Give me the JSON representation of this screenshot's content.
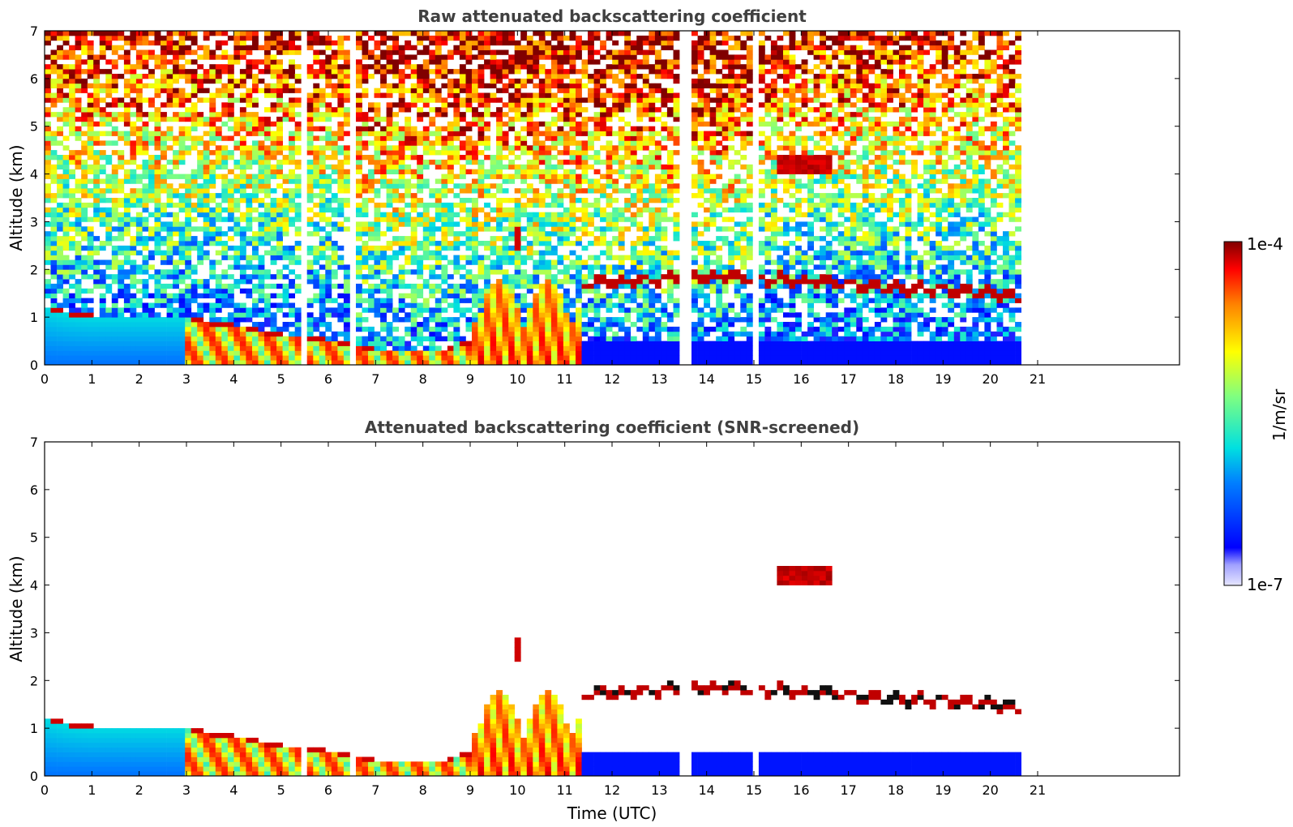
{
  "chart_data": [
    {
      "type": "heatmap",
      "title": "Raw attenuated backscattering coefficient",
      "xlabel": "",
      "ylabel": "Altitude (km)",
      "xlim": [
        0,
        24
      ],
      "ylim": [
        0,
        7
      ],
      "xticks": [
        "0",
        "1",
        "2",
        "3",
        "4",
        "5",
        "6",
        "7",
        "8",
        "9",
        "10",
        "11",
        "12",
        "13",
        "14",
        "15",
        "16",
        "17",
        "18",
        "19",
        "20",
        "21"
      ],
      "yticks": [
        "0",
        "1",
        "2",
        "3",
        "4",
        "5",
        "6",
        "7"
      ],
      "data_end_time": 20.65,
      "noise_field": "dense background noise increasing with altitude (blue near surface, yellow/red aloft)",
      "features": [
        {
          "name": "aerosol layer",
          "t": [
            0.0,
            0.5,
            1.0,
            1.5,
            2.0,
            2.5,
            3.0,
            3.5,
            4.0,
            4.5,
            5.0,
            5.5,
            6.0,
            6.5,
            7.0,
            7.5,
            8.0,
            8.5,
            9.0
          ],
          "top_km": [
            1.25,
            1.1,
            1.05,
            1.05,
            1.05,
            1.05,
            1.05,
            0.9,
            0.85,
            0.75,
            0.65,
            0.6,
            0.55,
            0.45,
            0.35,
            0.35,
            0.35,
            0.35,
            0.5
          ]
        },
        {
          "name": "cloud base",
          "t": [
            11.5,
            12.0,
            12.5,
            13.0,
            13.5,
            14.0,
            14.5,
            15.0,
            15.5,
            16.0,
            16.5,
            17.0,
            17.5,
            18.0,
            18.5,
            19.0,
            19.5,
            20.0,
            20.6
          ],
          "alt_km": [
            1.7,
            1.75,
            1.75,
            1.8,
            1.85,
            1.85,
            1.85,
            1.8,
            1.8,
            1.75,
            1.75,
            1.7,
            1.65,
            1.6,
            1.6,
            1.6,
            1.55,
            1.5,
            1.4
          ]
        },
        {
          "name": "elevated layer",
          "t": [
            15.5,
            16.6
          ],
          "alt_km": [
            4.15,
            4.3
          ]
        },
        {
          "name": "plume",
          "t": [
            10.0,
            10.1
          ],
          "alt_km": [
            2.5,
            2.8
          ]
        }
      ]
    },
    {
      "type": "heatmap",
      "title": "Attenuated backscattering coefficient (SNR-screened)",
      "xlabel": "Time (UTC)",
      "ylabel": "Altitude (km)",
      "xlim": [
        0,
        24
      ],
      "ylim": [
        0,
        7
      ],
      "xticks": [
        "0",
        "1",
        "2",
        "3",
        "4",
        "5",
        "6",
        "7",
        "8",
        "9",
        "10",
        "11",
        "12",
        "13",
        "14",
        "15",
        "16",
        "17",
        "18",
        "19",
        "20",
        "21"
      ],
      "yticks": [
        "0",
        "1",
        "2",
        "3",
        "4",
        "5",
        "6",
        "7"
      ],
      "data_end_time": 20.65,
      "noise_field": "screened: low-SNR pixels removed (white)"
    }
  ],
  "colorbar": {
    "label": "1/m/sr",
    "max_label": "1e-4",
    "min_label": "1e-7",
    "scale": "log",
    "colormap": "jet"
  },
  "colors": {
    "axis": "#000000",
    "title": "#404040",
    "background": "#ffffff"
  }
}
